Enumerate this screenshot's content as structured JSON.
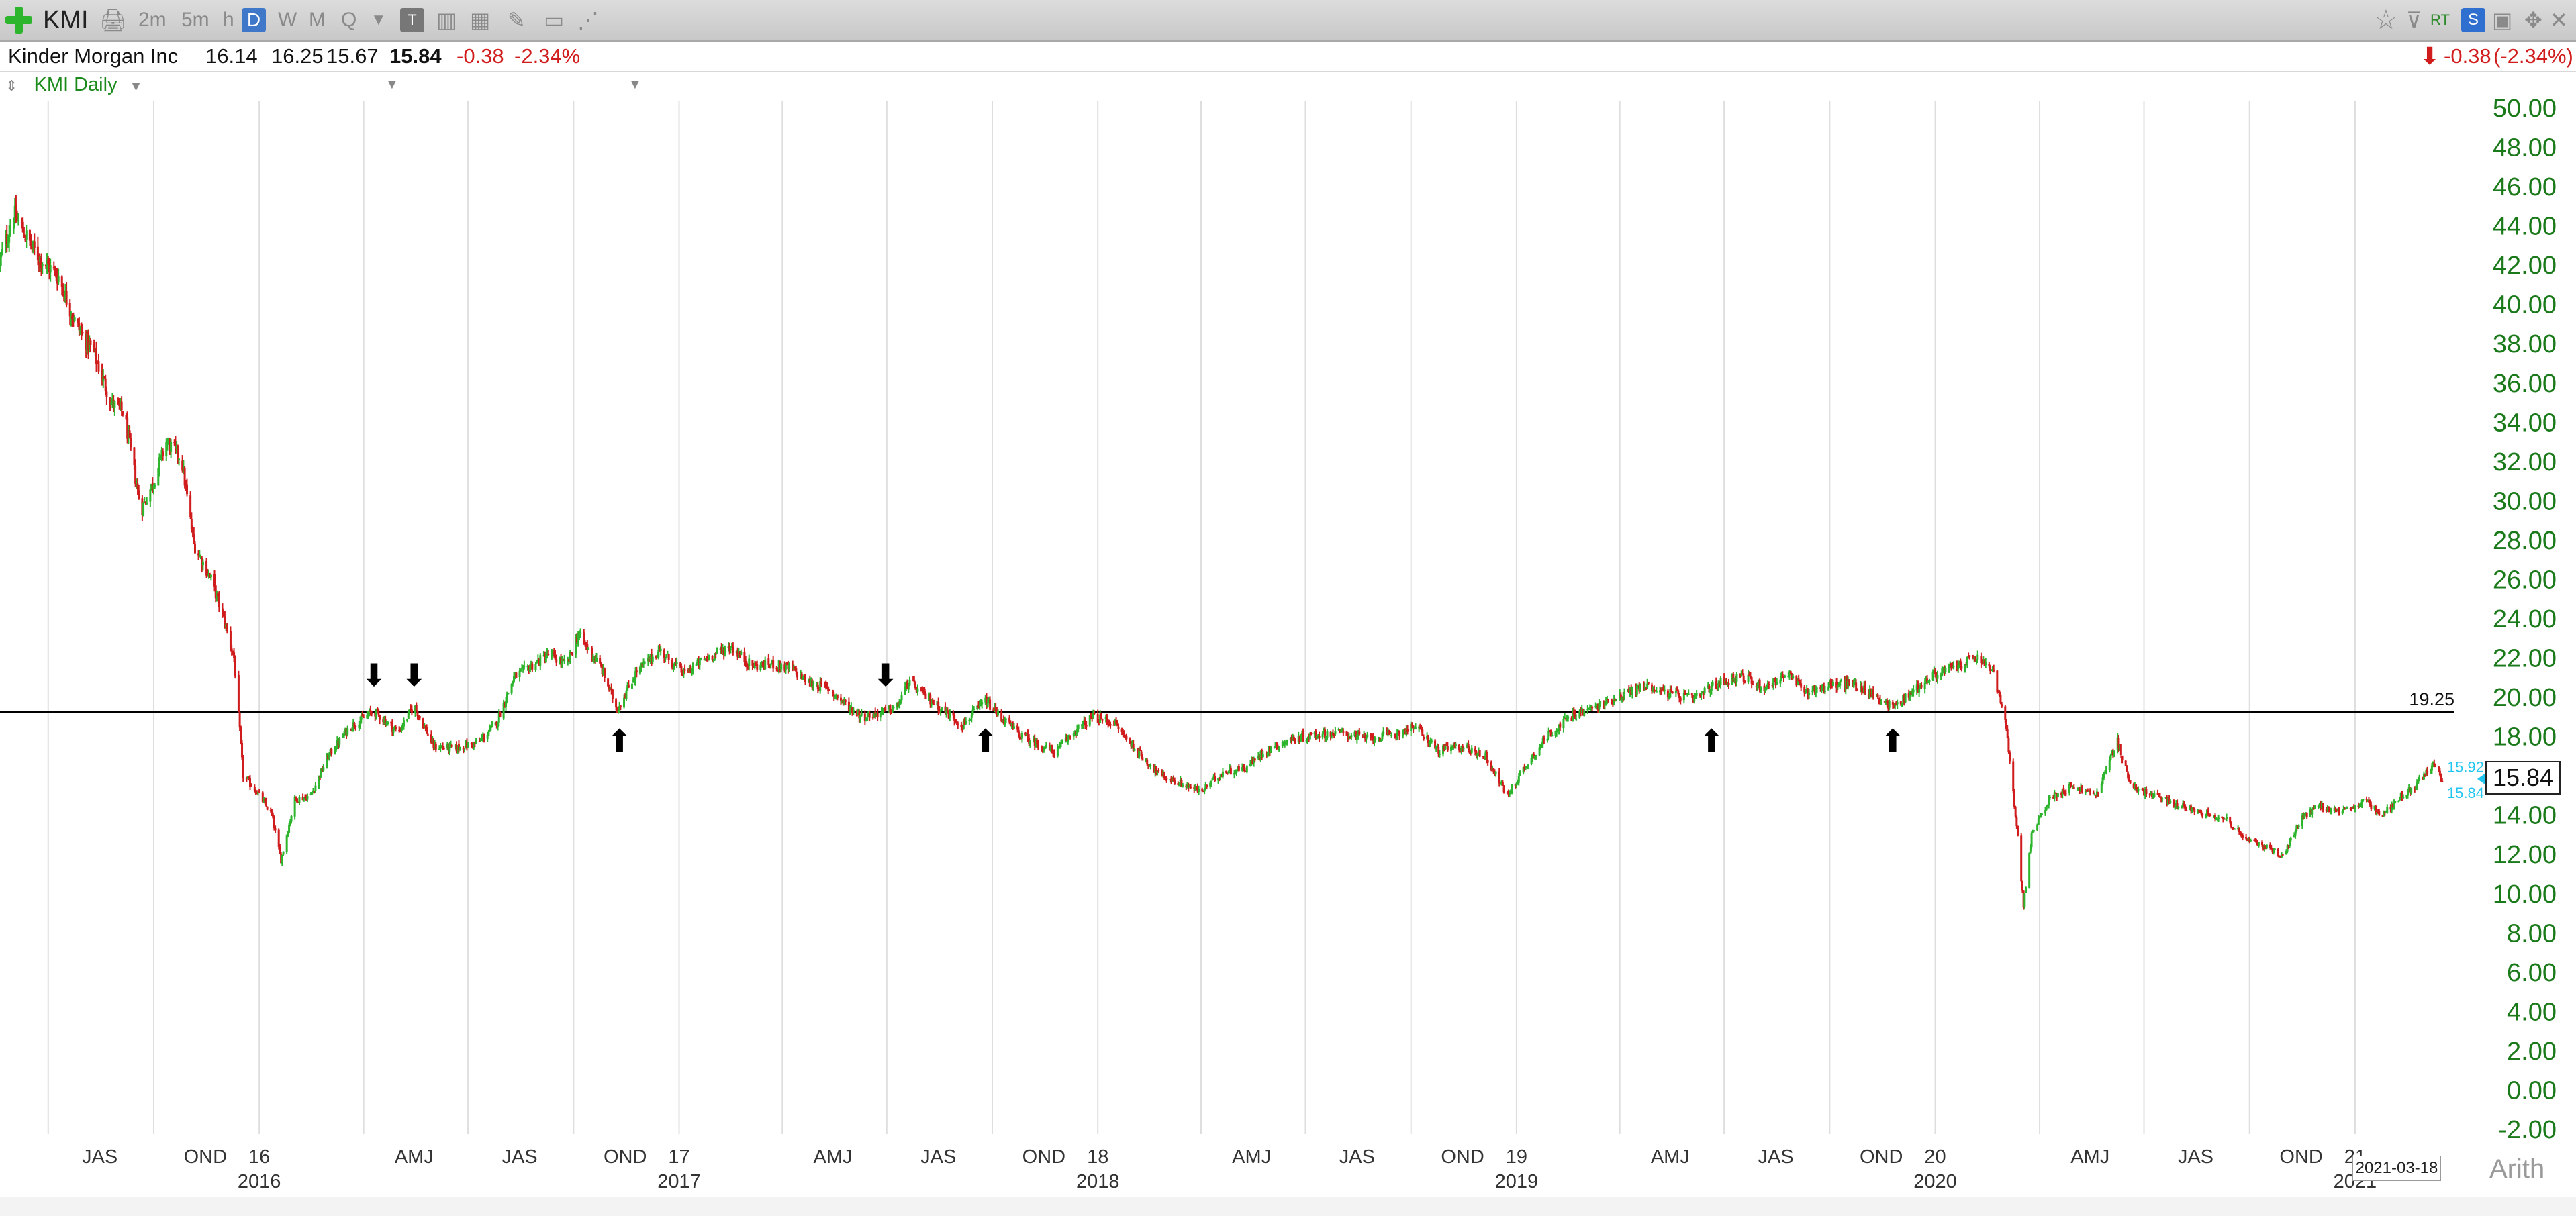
{
  "toolbar": {
    "symbol": "KMI",
    "intervals": [
      "2m",
      "5m",
      "h",
      "D",
      "W",
      "M",
      "Q"
    ],
    "active_interval": "D",
    "rt_label": "RT",
    "icons": [
      "add-symbol-icon",
      "print-icon",
      "chart-type-icon",
      "bar-style-icon",
      "grid-layout-icon",
      "draw-pencil-icon",
      "note-icon",
      "share-icon",
      "star-icon",
      "filter-icon",
      "stock-s-icon",
      "save-icon",
      "move-icon",
      "close-icon"
    ]
  },
  "quote": {
    "name": "Kinder Morgan Inc",
    "open": "16.14",
    "high": "16.25",
    "low": "15.67",
    "last": "15.84",
    "change": "-0.38",
    "change_pct": "-2.34%",
    "right_change": "-0.38",
    "right_change_pct": "(-2.34%)",
    "colors": {
      "down": "#d01c1c",
      "up": "#2db52d",
      "axis": "#1a7a1a"
    }
  },
  "legend": {
    "label": "KMI Daily"
  },
  "scale_label": "Arith",
  "cursor_date": "2021-03-18",
  "last_price_box": "15.84",
  "chart_data": {
    "type": "candlestick",
    "symbol": "KMI",
    "interval": "Daily",
    "ylim": [
      -2,
      50
    ],
    "y_ticks": [
      "50.00",
      "48.00",
      "46.00",
      "44.00",
      "42.00",
      "40.00",
      "38.00",
      "36.00",
      "34.00",
      "32.00",
      "30.00",
      "28.00",
      "26.00",
      "24.00",
      "22.00",
      "20.00",
      "18.00",
      "16.00",
      "14.00",
      "12.00",
      "10.00",
      "8.00",
      "6.00",
      "4.00",
      "2.00",
      "0.00",
      "-2.00"
    ],
    "x_quarter_labels": [
      {
        "date": "2015-08-15",
        "label": "JAS"
      },
      {
        "date": "2015-11-15",
        "label": "OND"
      },
      {
        "date": "2016-01-01",
        "label": "16",
        "year": "2016"
      },
      {
        "date": "2016-05-15",
        "label": "AMJ"
      },
      {
        "date": "2016-08-15",
        "label": "JAS"
      },
      {
        "date": "2016-11-15",
        "label": "OND"
      },
      {
        "date": "2017-01-01",
        "label": "17",
        "year": "2017"
      },
      {
        "date": "2017-05-15",
        "label": "AMJ"
      },
      {
        "date": "2017-08-15",
        "label": "JAS"
      },
      {
        "date": "2017-11-15",
        "label": "OND"
      },
      {
        "date": "2018-01-01",
        "label": "18",
        "year": "2018"
      },
      {
        "date": "2018-05-15",
        "label": "AMJ"
      },
      {
        "date": "2018-08-15",
        "label": "JAS"
      },
      {
        "date": "2018-11-15",
        "label": "OND"
      },
      {
        "date": "2019-01-01",
        "label": "19",
        "year": "2019"
      },
      {
        "date": "2019-05-15",
        "label": "AMJ"
      },
      {
        "date": "2019-08-15",
        "label": "JAS"
      },
      {
        "date": "2019-11-15",
        "label": "OND"
      },
      {
        "date": "2020-01-01",
        "label": "20",
        "year": "2020"
      },
      {
        "date": "2020-05-15",
        "label": "AMJ"
      },
      {
        "date": "2020-08-15",
        "label": "JAS"
      },
      {
        "date": "2020-11-15",
        "label": "OND"
      },
      {
        "date": "2021-01-01",
        "label": "21",
        "year": "2021"
      }
    ],
    "x_range": [
      "2015-05-20",
      "2021-03-31"
    ],
    "price_path": [
      [
        "2015-05-20",
        42.2
      ],
      [
        "2015-06-01",
        44.6
      ],
      [
        "2015-06-20",
        42.6
      ],
      [
        "2015-07-10",
        41.4
      ],
      [
        "2015-07-25",
        39.0
      ],
      [
        "2015-08-10",
        37.5
      ],
      [
        "2015-08-25",
        35.0
      ],
      [
        "2015-09-05",
        34.5
      ],
      [
        "2015-09-20",
        29.5
      ],
      [
        "2015-10-01",
        31.0
      ],
      [
        "2015-10-12",
        33.0
      ],
      [
        "2015-10-25",
        32.2
      ],
      [
        "2015-11-05",
        27.8
      ],
      [
        "2015-11-20",
        26.0
      ],
      [
        "2015-12-01",
        24.0
      ],
      [
        "2015-12-10",
        22.0
      ],
      [
        "2015-12-18",
        16.0
      ],
      [
        "2015-12-30",
        15.2
      ],
      [
        "2016-01-12",
        14.0
      ],
      [
        "2016-01-20",
        11.7
      ],
      [
        "2016-02-01",
        14.8
      ],
      [
        "2016-02-15",
        15.0
      ],
      [
        "2016-03-01",
        17.0
      ],
      [
        "2016-03-20",
        18.5
      ],
      [
        "2016-04-10",
        19.3
      ],
      [
        "2016-05-01",
        18.2
      ],
      [
        "2016-05-15",
        19.6
      ],
      [
        "2016-06-01",
        17.5
      ],
      [
        "2016-06-20",
        17.4
      ],
      [
        "2016-07-10",
        17.7
      ],
      [
        "2016-07-25",
        18.6
      ],
      [
        "2016-08-10",
        21.0
      ],
      [
        "2016-08-25",
        21.6
      ],
      [
        "2016-09-10",
        22.2
      ],
      [
        "2016-09-25",
        21.6
      ],
      [
        "2016-10-05",
        23.2
      ],
      [
        "2016-10-25",
        21.5
      ],
      [
        "2016-11-08",
        19.4
      ],
      [
        "2016-11-25",
        21.3
      ],
      [
        "2016-12-15",
        22.4
      ],
      [
        "2017-01-05",
        21.2
      ],
      [
        "2017-01-25",
        22.0
      ],
      [
        "2017-02-15",
        22.6
      ],
      [
        "2017-03-05",
        21.6
      ],
      [
        "2017-03-25",
        21.7
      ],
      [
        "2017-04-10",
        21.4
      ],
      [
        "2017-04-25",
        20.7
      ],
      [
        "2017-05-10",
        20.5
      ],
      [
        "2017-05-25",
        19.7
      ],
      [
        "2017-06-10",
        19.0
      ],
      [
        "2017-06-25",
        19.2
      ],
      [
        "2017-07-10",
        19.5
      ],
      [
        "2017-07-20",
        20.8
      ],
      [
        "2017-08-05",
        20.0
      ],
      [
        "2017-08-20",
        19.3
      ],
      [
        "2017-09-05",
        18.6
      ],
      [
        "2017-09-25",
        19.8
      ],
      [
        "2017-10-10",
        18.9
      ],
      [
        "2017-10-25",
        18.1
      ],
      [
        "2017-11-10",
        17.6
      ],
      [
        "2017-11-25",
        17.2
      ],
      [
        "2017-12-10",
        18.2
      ],
      [
        "2017-12-28",
        19.0
      ],
      [
        "2018-01-15",
        18.7
      ],
      [
        "2018-02-05",
        17.2
      ],
      [
        "2018-02-25",
        16.0
      ],
      [
        "2018-03-15",
        15.6
      ],
      [
        "2018-04-01",
        15.2
      ],
      [
        "2018-04-20",
        16.2
      ],
      [
        "2018-05-10",
        16.4
      ],
      [
        "2018-05-25",
        17.2
      ],
      [
        "2018-06-15",
        17.8
      ],
      [
        "2018-07-10",
        18.1
      ],
      [
        "2018-08-01",
        18.2
      ],
      [
        "2018-08-25",
        17.9
      ],
      [
        "2018-09-15",
        18.1
      ],
      [
        "2018-10-05",
        18.5
      ],
      [
        "2018-10-25",
        17.3
      ],
      [
        "2018-11-15",
        17.5
      ],
      [
        "2018-12-05",
        17.0
      ],
      [
        "2018-12-24",
        15.0
      ],
      [
        "2019-01-10",
        16.6
      ],
      [
        "2019-01-30",
        18.2
      ],
      [
        "2019-02-20",
        19.1
      ],
      [
        "2019-03-15",
        19.6
      ],
      [
        "2019-04-05",
        20.2
      ],
      [
        "2019-04-25",
        20.6
      ],
      [
        "2019-05-15",
        20.2
      ],
      [
        "2019-06-05",
        19.9
      ],
      [
        "2019-06-25",
        20.7
      ],
      [
        "2019-07-15",
        21.1
      ],
      [
        "2019-08-05",
        20.5
      ],
      [
        "2019-08-25",
        21.2
      ],
      [
        "2019-09-10",
        20.3
      ],
      [
        "2019-09-30",
        20.6
      ],
      [
        "2019-10-20",
        20.7
      ],
      [
        "2019-11-10",
        20.1
      ],
      [
        "2019-11-25",
        19.5
      ],
      [
        "2019-12-10",
        20.2
      ],
      [
        "2019-12-30",
        21.1
      ],
      [
        "2020-01-20",
        21.6
      ],
      [
        "2020-02-05",
        22.0
      ],
      [
        "2020-02-20",
        21.4
      ],
      [
        "2020-03-02",
        18.8
      ],
      [
        "2020-03-12",
        13.5
      ],
      [
        "2020-03-18",
        9.4
      ],
      [
        "2020-03-25",
        13.0
      ],
      [
        "2020-04-10",
        14.9
      ],
      [
        "2020-04-30",
        15.5
      ],
      [
        "2020-05-20",
        15.0
      ],
      [
        "2020-06-08",
        17.8
      ],
      [
        "2020-06-20",
        15.4
      ],
      [
        "2020-07-10",
        15.0
      ],
      [
        "2020-07-30",
        14.5
      ],
      [
        "2020-08-20",
        14.2
      ],
      [
        "2020-09-10",
        13.8
      ],
      [
        "2020-09-30",
        12.7
      ],
      [
        "2020-10-20",
        12.3
      ],
      [
        "2020-10-30",
        11.9
      ],
      [
        "2020-11-15",
        13.8
      ],
      [
        "2020-12-01",
        14.5
      ],
      [
        "2020-12-20",
        14.1
      ],
      [
        "2021-01-10",
        14.7
      ],
      [
        "2021-01-25",
        14.0
      ],
      [
        "2021-02-10",
        15.0
      ],
      [
        "2021-02-25",
        15.6
      ],
      [
        "2021-03-10",
        16.6
      ],
      [
        "2021-03-18",
        15.84
      ]
    ],
    "support_resistance_line": {
      "value": 19.25,
      "label": "19.25"
    },
    "markers": [
      {
        "date": "2016-04-10",
        "direction": "down",
        "glyph": "⬇"
      },
      {
        "date": "2016-05-15",
        "direction": "down",
        "glyph": "⬇"
      },
      {
        "date": "2016-11-10",
        "direction": "up",
        "glyph": "⬆"
      },
      {
        "date": "2017-06-30",
        "direction": "down",
        "glyph": "⬇"
      },
      {
        "date": "2017-09-25",
        "direction": "up",
        "glyph": "⬆"
      },
      {
        "date": "2019-06-20",
        "direction": "up",
        "glyph": "⬆"
      },
      {
        "date": "2019-11-25",
        "direction": "up",
        "glyph": "⬆"
      }
    ],
    "price_tags": [
      {
        "value": 15.92,
        "label": "15.92"
      },
      {
        "value": 15.84,
        "label": "15.84"
      }
    ],
    "last_price": 15.84,
    "grid": "vertical",
    "colors": {
      "up": "#2db52d",
      "down": "#d01c1c",
      "line": "#000000",
      "tag": "#21c6f0"
    }
  }
}
